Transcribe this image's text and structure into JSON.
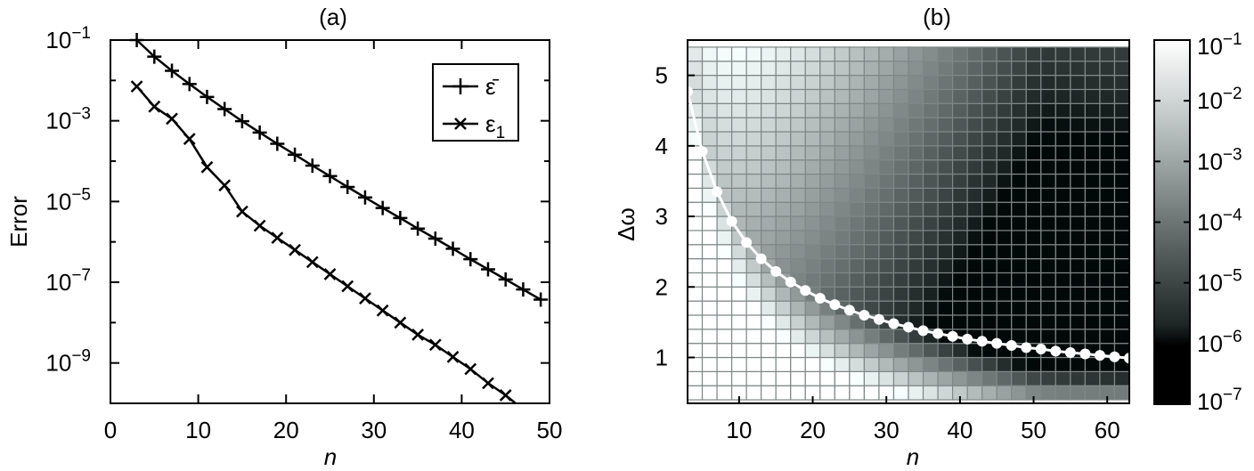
{
  "chart_data": [
    {
      "panel": "(a)",
      "type": "line",
      "title": "(a)",
      "xlabel": "n",
      "ylabel": "Error",
      "xlim": [
        0,
        50
      ],
      "ylim_log10": [
        -10,
        -1
      ],
      "yscale": "log",
      "xticks": [
        0,
        10,
        20,
        30,
        40,
        50
      ],
      "yticks": [
        {
          "exp": -1,
          "base": "10",
          "sup": "−1"
        },
        {
          "exp": -3,
          "base": "10",
          "sup": "−3"
        },
        {
          "exp": -5,
          "base": "10",
          "sup": "−5"
        },
        {
          "exp": -7,
          "base": "10",
          "sup": "−7"
        },
        {
          "exp": -9,
          "base": "10",
          "sup": "−9"
        }
      ],
      "legend": "top-right",
      "series": [
        {
          "name": "ε̄",
          "marker": "plus",
          "x": [
            3,
            5,
            7,
            9,
            11,
            13,
            15,
            17,
            19,
            21,
            23,
            25,
            27,
            29,
            31,
            33,
            35,
            37,
            39,
            41,
            43,
            45,
            47,
            49
          ],
          "log10_y": [
            -1.0,
            -1.41,
            -1.76,
            -2.09,
            -2.41,
            -2.71,
            -3.01,
            -3.29,
            -3.57,
            -3.84,
            -4.11,
            -4.37,
            -4.64,
            -4.9,
            -5.16,
            -5.41,
            -5.67,
            -5.92,
            -6.17,
            -6.43,
            -6.68,
            -6.93,
            -7.18,
            -7.43
          ]
        },
        {
          "name": "ε₁",
          "label_main": "ε",
          "label_sub": "1",
          "marker": "x",
          "x": [
            3,
            5,
            7,
            9,
            11,
            13,
            15,
            17,
            19,
            21,
            23,
            25,
            27,
            29,
            31,
            33,
            35,
            37,
            39,
            41,
            43,
            45,
            47,
            49
          ],
          "log10_y": [
            -2.15,
            -2.65,
            -2.95,
            -3.45,
            -4.15,
            -4.6,
            -5.25,
            -5.6,
            -5.9,
            -6.2,
            -6.5,
            -6.8,
            -7.1,
            -7.4,
            -7.7,
            -8.0,
            -8.3,
            -8.55,
            -8.85,
            -9.15,
            -9.5,
            -9.8,
            -10.15,
            -10.55
          ]
        }
      ]
    },
    {
      "panel": "(b)",
      "type": "heatmap",
      "title": "(b)",
      "xlabel": "n",
      "ylabel": "Δω",
      "xlim": [
        3,
        63
      ],
      "ylim": [
        0.35,
        5.5
      ],
      "xticks": [
        10,
        20,
        30,
        40,
        50,
        60
      ],
      "yticks": [
        1,
        2,
        3,
        4,
        5
      ],
      "grid": {
        "x_start": 3,
        "x_step": 2,
        "x_count": 30,
        "y_start": 0.5,
        "y_step": 0.2,
        "y_count": 25
      },
      "colorscale": "grayscale log10 error, black = 1e-7, white = 1e-1",
      "colorbar": {
        "vmin_log10": -7,
        "vmax_log10": -1,
        "ticks": [
          {
            "exp": -1,
            "base": "10",
            "sup": "−1"
          },
          {
            "exp": -2,
            "base": "10",
            "sup": "−2"
          },
          {
            "exp": -3,
            "base": "10",
            "sup": "−3"
          },
          {
            "exp": -4,
            "base": "10",
            "sup": "−4"
          },
          {
            "exp": -5,
            "base": "10",
            "sup": "−5"
          },
          {
            "exp": -6,
            "base": "10",
            "sup": "−6"
          },
          {
            "exp": -7,
            "base": "10",
            "sup": "−7"
          }
        ]
      },
      "optimal_curve": {
        "color": "#ffffff",
        "x": [
          3,
          5,
          7,
          9,
          11,
          13,
          15,
          17,
          19,
          21,
          23,
          25,
          27,
          29,
          31,
          33,
          35,
          37,
          39,
          41,
          43,
          45,
          47,
          49,
          51,
          53,
          55,
          57,
          59,
          61,
          63
        ],
        "y": [
          4.77,
          3.92,
          3.35,
          2.93,
          2.63,
          2.4,
          2.22,
          2.07,
          1.95,
          1.84,
          1.75,
          1.67,
          1.6,
          1.54,
          1.48,
          1.43,
          1.38,
          1.34,
          1.3,
          1.26,
          1.23,
          1.2,
          1.17,
          1.14,
          1.12,
          1.09,
          1.07,
          1.05,
          1.03,
          1.01,
          0.99
        ]
      }
    }
  ]
}
